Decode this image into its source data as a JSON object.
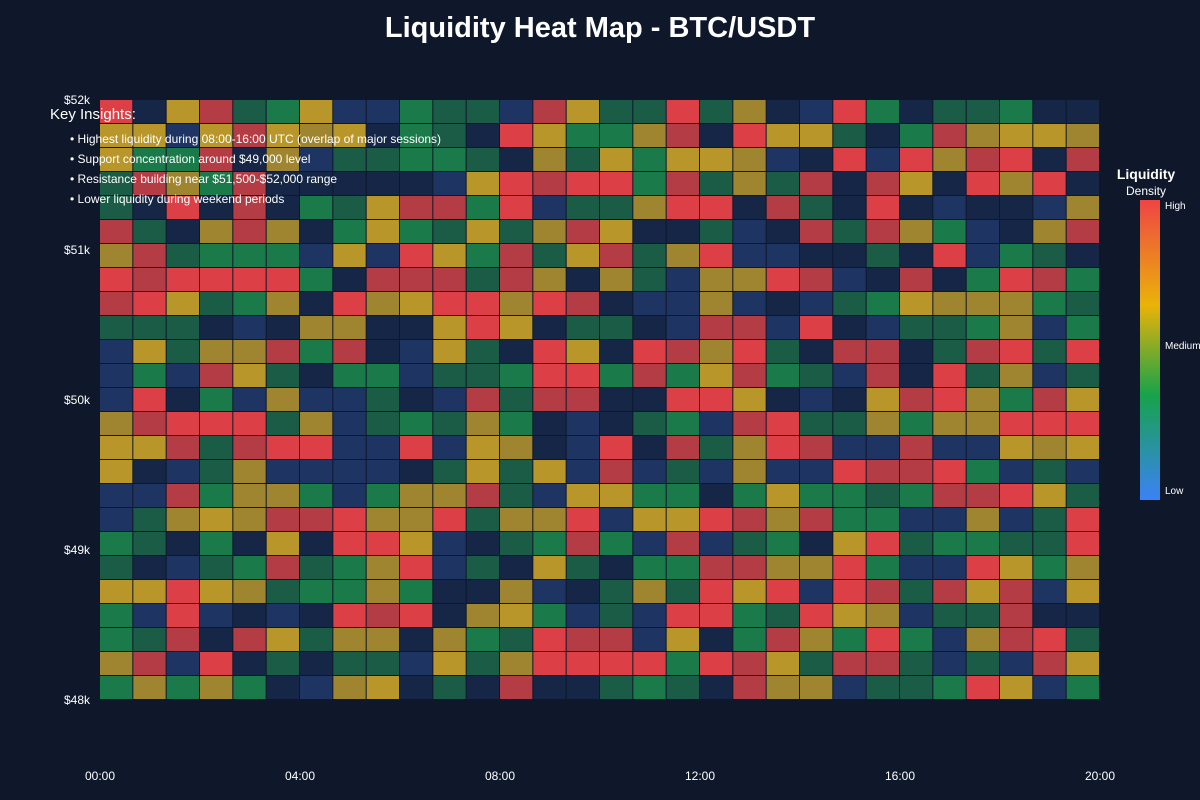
{
  "title": "Liquidity Heat Map - BTC/USDT",
  "chart_data": {
    "type": "heatmap",
    "title": "Liquidity Heat Map - BTC/USDT",
    "x_ticks": [
      "00:00",
      "04:00",
      "08:00",
      "12:00",
      "16:00",
      "20:00"
    ],
    "y_ticks": [
      "$52k",
      "$51k",
      "$50k",
      "$49k",
      "$48k"
    ],
    "ylim": [
      48000,
      52000
    ],
    "rows": 25,
    "cols": 30,
    "palette": {
      "high": "#dc3f46",
      "high_alt": "#b43c44",
      "medium": "#b8962a",
      "medium_alt": "#a08530",
      "mid_low": "#1b7a4a",
      "mid_low_alt": "#1a5c45",
      "low": "#1e3564",
      "low_alt": "#152647"
    },
    "colorbar": {
      "title": "Liquidity",
      "subtitle": "Density",
      "labels": [
        "High",
        "Medium",
        "Low"
      ]
    }
  },
  "insights": {
    "title": "Key Insights:",
    "items": [
      "• Highest liquidity during 08:00-16:00 UTC (overlap of major sessions)",
      "• Support concentration around $49,000 level",
      "• Resistance building near $51,500-$52,000 range",
      "• Lower liquidity during weekend periods"
    ]
  }
}
